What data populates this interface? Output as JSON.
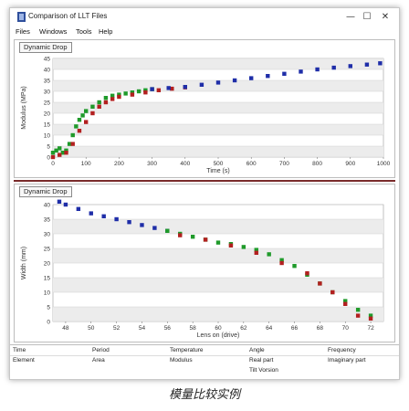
{
  "window": {
    "title": "Comparison of LLT Files",
    "controls": {
      "minimize": "—",
      "maximize": "☐",
      "close": "✕"
    }
  },
  "menu": {
    "items": [
      "Files",
      "Windows",
      "Tools",
      "Help"
    ]
  },
  "charts": {
    "top": {
      "panel_label": "Dynamic Drop"
    },
    "bottom": {
      "panel_label": "Dynamic Drop"
    }
  },
  "chart_data": [
    {
      "type": "scatter",
      "xlabel": "Time (s)",
      "ylabel": "Modulus (MPa)",
      "xlim": [
        0,
        1000
      ],
      "ylim": [
        0,
        45
      ],
      "xticks": [
        0,
        100,
        200,
        300,
        400,
        500,
        600,
        700,
        800,
        900,
        1000
      ],
      "yticks": [
        0,
        5,
        10,
        15,
        20,
        25,
        30,
        35,
        40,
        45
      ],
      "tick_labels_x": [
        "0",
        "100",
        "200",
        "300",
        "400",
        "500",
        "600",
        "700",
        "800",
        "900",
        "1000"
      ],
      "tick_labels_y": [
        "0",
        "5",
        "10",
        "15",
        "20",
        "25",
        "30",
        "35",
        "40",
        "45"
      ],
      "grid": true,
      "series": [
        {
          "color": "#1f9a2a",
          "points": [
            [
              0,
              2
            ],
            [
              10,
              3
            ],
            [
              20,
              4
            ],
            [
              30,
              2
            ],
            [
              40,
              3
            ],
            [
              50,
              6
            ],
            [
              60,
              10
            ],
            [
              70,
              14
            ],
            [
              80,
              17
            ],
            [
              90,
              19
            ],
            [
              100,
              21
            ],
            [
              120,
              23
            ],
            [
              140,
              25
            ],
            [
              160,
              27
            ],
            [
              180,
              28
            ],
            [
              200,
              28.5
            ],
            [
              220,
              29
            ],
            [
              240,
              29.5
            ],
            [
              260,
              30
            ],
            [
              280,
              30.5
            ],
            [
              300,
              31
            ]
          ]
        },
        {
          "color": "#b32020",
          "points": [
            [
              0,
              0
            ],
            [
              20,
              1
            ],
            [
              40,
              2
            ],
            [
              60,
              6
            ],
            [
              80,
              12
            ],
            [
              100,
              16
            ],
            [
              120,
              20
            ],
            [
              140,
              23
            ],
            [
              160,
              25
            ],
            [
              180,
              26.5
            ],
            [
              200,
              27.5
            ],
            [
              240,
              28.5
            ],
            [
              280,
              29.5
            ],
            [
              320,
              30.5
            ],
            [
              360,
              31.2
            ],
            [
              400,
              31.8
            ]
          ]
        },
        {
          "color": "#1f2ea8",
          "points": [
            [
              300,
              31
            ],
            [
              350,
              31.5
            ],
            [
              400,
              32
            ],
            [
              450,
              33
            ],
            [
              500,
              34
            ],
            [
              550,
              35
            ],
            [
              600,
              36
            ],
            [
              650,
              37
            ],
            [
              700,
              38
            ],
            [
              750,
              39
            ],
            [
              800,
              40
            ],
            [
              850,
              40.8
            ],
            [
              900,
              41.5
            ],
            [
              950,
              42.2
            ],
            [
              990,
              42.8
            ]
          ]
        }
      ]
    },
    {
      "type": "scatter",
      "xlabel": "Lens on (drive)",
      "ylabel": "Width (mm)",
      "xlim": [
        47,
        73
      ],
      "ylim": [
        0,
        40
      ],
      "xticks": [
        48,
        50,
        52,
        54,
        56,
        58,
        60,
        62,
        64,
        66,
        68,
        70,
        72
      ],
      "yticks": [
        0,
        5,
        10,
        15,
        20,
        25,
        30,
        35,
        40
      ],
      "tick_labels_x": [
        "48",
        "50",
        "52",
        "54",
        "56",
        "58",
        "60",
        "62",
        "64",
        "66",
        "68",
        "70",
        "72"
      ],
      "tick_labels_y": [
        "0",
        "5",
        "10",
        "15",
        "20",
        "25",
        "30",
        "35",
        "40"
      ],
      "grid": true,
      "series": [
        {
          "color": "#1f2ea8",
          "points": [
            [
              47.5,
              41
            ],
            [
              48,
              40
            ],
            [
              49,
              38.5
            ],
            [
              50,
              37
            ],
            [
              51,
              36
            ],
            [
              52,
              35
            ],
            [
              53,
              34
            ],
            [
              54,
              33
            ],
            [
              55,
              32
            ],
            [
              56,
              31
            ]
          ]
        },
        {
          "color": "#1f9a2a",
          "points": [
            [
              56,
              31
            ],
            [
              57,
              30
            ],
            [
              58,
              29
            ],
            [
              59,
              28
            ],
            [
              60,
              27
            ],
            [
              61,
              26.5
            ],
            [
              62,
              25.5
            ],
            [
              63,
              24.5
            ],
            [
              64,
              23
            ],
            [
              65,
              21
            ],
            [
              66,
              19
            ],
            [
              67,
              16
            ],
            [
              68,
              13
            ],
            [
              69,
              10
            ],
            [
              70,
              7
            ],
            [
              71,
              4
            ],
            [
              72,
              2
            ]
          ]
        },
        {
          "color": "#b32020",
          "points": [
            [
              57,
              29.5
            ],
            [
              59,
              28
            ],
            [
              61,
              26
            ],
            [
              63,
              23.5
            ],
            [
              65,
              20
            ],
            [
              67,
              16.5
            ],
            [
              68,
              13
            ],
            [
              69,
              10
            ],
            [
              70,
              6
            ],
            [
              71,
              2
            ],
            [
              72,
              1
            ]
          ]
        }
      ]
    }
  ],
  "table": {
    "row1": [
      "Time",
      "Period",
      "Temperature",
      "Angle",
      "Frequency"
    ],
    "row2": [
      "Element",
      "Area",
      "Modulus",
      "Real part",
      "Imaginary part"
    ],
    "row3": [
      "",
      "",
      "",
      "Tilt Vorsion",
      ""
    ]
  },
  "caption": "模量比较实例"
}
